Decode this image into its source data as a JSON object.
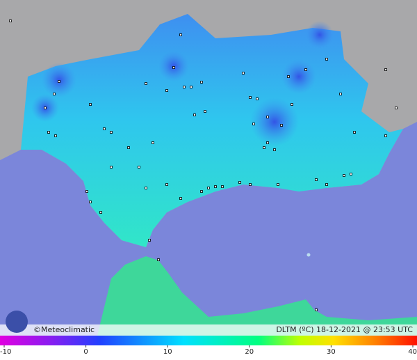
{
  "map": {
    "credit": "©Meteoclimatic",
    "caption": "DLTM (ºC)  18-12-2021 @ 23:53 UTC",
    "colorbar": {
      "lim": [
        -10,
        40
      ],
      "ticks": [
        -10,
        0,
        10,
        20,
        30,
        40
      ]
    }
  }
}
